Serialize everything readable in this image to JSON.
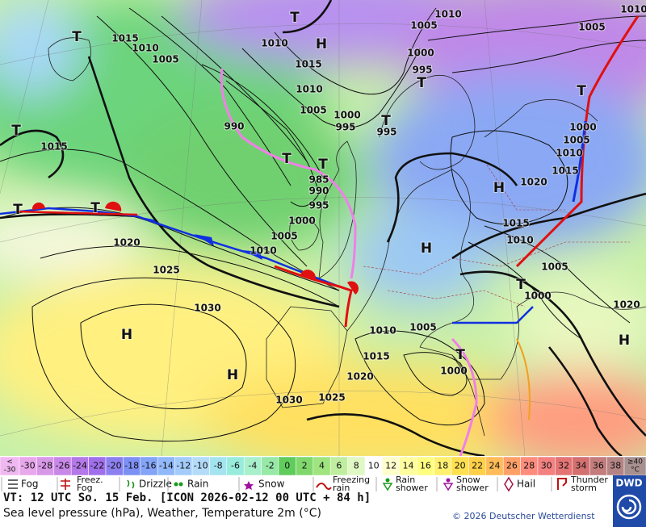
{
  "map_labels": [
    "T",
    "1010",
    "1010",
    "1005",
    "1005",
    "T",
    "1015",
    "1010",
    "1005",
    "1010",
    "H",
    "1015",
    "1000",
    "995",
    "T",
    "1010",
    "1005",
    "1000",
    "995",
    "T",
    "995",
    "990",
    "T",
    "1015",
    "T",
    "T",
    "985",
    "990",
    "995",
    "1000",
    "1005",
    "1010",
    "1020",
    "1025",
    "1030",
    "H",
    "H",
    "T",
    "T",
    "H",
    "1020",
    "1015",
    "1010",
    "1005",
    "1000",
    "T",
    "H",
    "1000",
    "1005",
    "1010",
    "1015",
    "T",
    "1010",
    "1005",
    "1015",
    "1020",
    "1030",
    "1025",
    "1000",
    "T",
    "H",
    "1020"
  ],
  "scale": {
    "low_sign": "<",
    "low_value": "-30",
    "values": [
      "-30",
      "-28",
      "-26",
      "-24",
      "-22",
      "-20",
      "-18",
      "-16",
      "-14",
      "-12",
      "-10",
      "-8",
      "-6",
      "-4",
      "-2",
      "0",
      "2",
      "4",
      "6",
      "8",
      "10",
      "12",
      "14",
      "16",
      "18",
      "20",
      "22",
      "24",
      "26",
      "28",
      "30",
      "32",
      "34",
      "36",
      "38"
    ],
    "high_value": "≥40",
    "unit": "°C",
    "colors": [
      "#f0b8f0",
      "#e8a8ec",
      "#d898e8",
      "#c888e8",
      "#b478e8",
      "#a070ec",
      "#8c80f0",
      "#7c90f4",
      "#84a4f8",
      "#90b8fa",
      "#a4ccfa",
      "#b4dcfa",
      "#a4e4f0",
      "#98ecdc",
      "#a8f0cc",
      "#98e8a8",
      "#60cc5c",
      "#80d86c",
      "#a0e480",
      "#c0eea0",
      "#e0f8c4",
      "#ffffff",
      "#ffffcc",
      "#ffffa0",
      "#ffff80",
      "#fff070",
      "#ffe050",
      "#ffd048",
      "#ffbc58",
      "#ffa068",
      "#ff8c7c",
      "#f48080",
      "#e47474",
      "#d47070",
      "#c47c7c",
      "#b48484",
      "#a89090"
    ]
  },
  "legend": [
    [
      "Fog"
    ],
    [
      "Freez.",
      "Fog"
    ],
    [
      "Drizzle"
    ],
    [
      "Rain"
    ],
    [
      "Snow"
    ],
    [
      "Freezing",
      "rain"
    ],
    [
      "Rain",
      "shower"
    ],
    [
      "Snow",
      "shower"
    ],
    [
      "Hail"
    ],
    [
      "Thunder",
      "storm"
    ]
  ],
  "footer": {
    "valid_time": "VT: 12 UTC So.  15 Feb. [ICON 2026-02-12  00 UTC + 84 h]",
    "subtitle": "Sea level pressure (hPa), Weather, Temperature 2m (°C)",
    "copyright": "© 2026 Deutscher Wetterdienst",
    "logo": "DWD"
  }
}
